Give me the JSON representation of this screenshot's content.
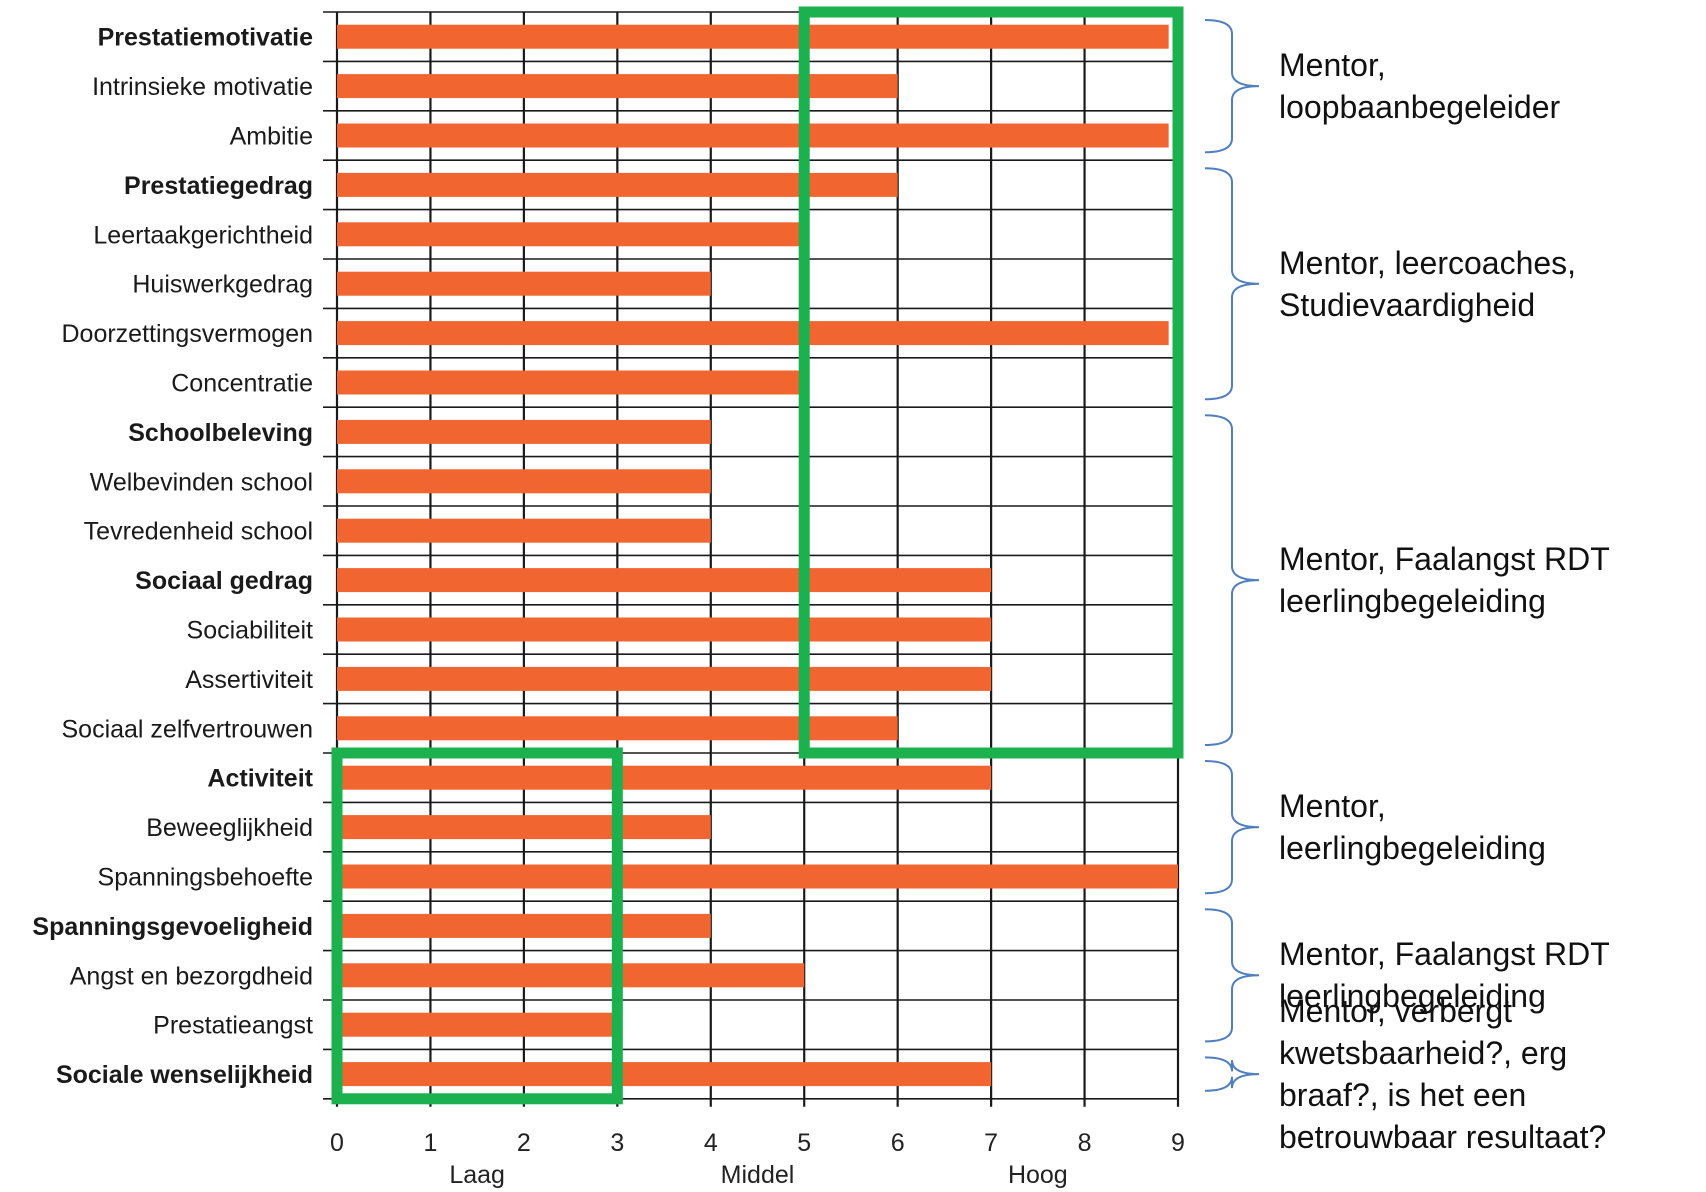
{
  "chart_data": {
    "type": "bar",
    "orientation": "horizontal",
    "categories": [
      {
        "label": "Prestatiemotivatie",
        "bold": true
      },
      {
        "label": "Intrinsieke motivatie",
        "bold": false
      },
      {
        "label": "Ambitie",
        "bold": false
      },
      {
        "label": "Prestatiegedrag",
        "bold": true
      },
      {
        "label": "Leertaakgerichtheid",
        "bold": false
      },
      {
        "label": "Huiswerkgedrag",
        "bold": false
      },
      {
        "label": "Doorzettingsvermogen",
        "bold": false
      },
      {
        "label": "Concentratie",
        "bold": false
      },
      {
        "label": "Schoolbeleving",
        "bold": true
      },
      {
        "label": "Welbevinden school",
        "bold": false
      },
      {
        "label": "Tevredenheid school",
        "bold": false
      },
      {
        "label": "Sociaal gedrag",
        "bold": true
      },
      {
        "label": "Sociabiliteit",
        "bold": false
      },
      {
        "label": "Assertiviteit",
        "bold": false
      },
      {
        "label": "Sociaal zelfvertrouwen",
        "bold": false
      },
      {
        "label": "Activiteit",
        "bold": true
      },
      {
        "label": "Beweeglijkheid",
        "bold": false
      },
      {
        "label": "Spanningsbehoefte",
        "bold": false
      },
      {
        "label": "Spanningsgevoeligheid",
        "bold": true
      },
      {
        "label": "Angst en bezorgdheid",
        "bold": false
      },
      {
        "label": "Prestatieangst",
        "bold": false
      },
      {
        "label": "Sociale wenselijkheid",
        "bold": true
      }
    ],
    "values": [
      8.9,
      6,
      8.9,
      6,
      5,
      4,
      8.9,
      5,
      4,
      4,
      4,
      7,
      7,
      7,
      6,
      7,
      4,
      9,
      4,
      5,
      3,
      7
    ],
    "xlim": [
      0,
      9
    ],
    "xticks": [
      "0",
      "1",
      "2",
      "3",
      "4",
      "5",
      "6",
      "7",
      "8",
      "9"
    ],
    "band_labels": [
      {
        "text": "Laag",
        "x": 1.5
      },
      {
        "text": "Middel",
        "x": 4.5
      },
      {
        "text": "Hoog",
        "x": 7.5
      }
    ],
    "grid": true,
    "colors": {
      "bar": "#f06530",
      "grid": "#1a1a1a",
      "highlight": "#1ab14e",
      "brace": "#4f7fc0"
    },
    "highlights": [
      {
        "from_category": 0,
        "to_category": 14,
        "x_start": 5,
        "x_end": 9
      },
      {
        "from_category": 15,
        "to_category": 21,
        "x_start": 0,
        "x_end": 3
      }
    ],
    "groups": [
      {
        "from_category": 0,
        "to_category": 2,
        "note": "Mentor,\nloopbaanbegeleider"
      },
      {
        "from_category": 3,
        "to_category": 7,
        "note": "Mentor, leercoaches,\nStudievaardigheid"
      },
      {
        "from_category": 8,
        "to_category": 14,
        "note": "Mentor, Faalangst RDT\nleerlingbegeleiding"
      },
      {
        "from_category": 15,
        "to_category": 17,
        "note": "Mentor,\nleerlingbegeleiding"
      },
      {
        "from_category": 18,
        "to_category": 20,
        "note": "Mentor, Faalangst RDT\nleerlingbegeleiding"
      },
      {
        "from_category": 21,
        "to_category": 21,
        "note": "Mentor, verbergt\nkwetsbaarheid?, erg\nbraaf?, is het een\nbetrouwbaar resultaat?"
      }
    ]
  }
}
